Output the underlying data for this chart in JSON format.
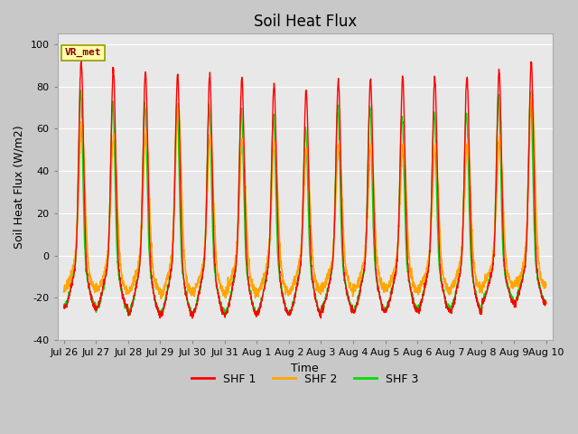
{
  "title": "Soil Heat Flux",
  "xlabel": "Time",
  "ylabel": "Soil Heat Flux (W/m2)",
  "ylim": [
    -40,
    105
  ],
  "yticks": [
    -40,
    -20,
    0,
    20,
    40,
    60,
    80,
    100
  ],
  "num_days": 15,
  "bg_color": "#c8c8c8",
  "plot_bg_color": "#e8e8e8",
  "colors": {
    "shf1": "#ff0000",
    "shf2": "#ffa500",
    "shf3": "#00dd00"
  },
  "legend_labels": [
    "SHF 1",
    "SHF 2",
    "SHF 3"
  ],
  "annotation_text": "VR_met",
  "annotation_bg": "#ffffaa",
  "annotation_border": "#999900",
  "x_tick_labels": [
    "Jul 26",
    "Jul 27",
    "Jul 28",
    "Jul 29",
    "Jul 30",
    "Jul 31",
    "Aug 1",
    "Aug 2",
    "Aug 3",
    "Aug 4",
    "Aug 5",
    "Aug 6",
    "Aug 7",
    "Aug 8",
    "Aug 9",
    "Aug 10"
  ],
  "title_fontsize": 12,
  "axis_fontsize": 9,
  "tick_fontsize": 8
}
